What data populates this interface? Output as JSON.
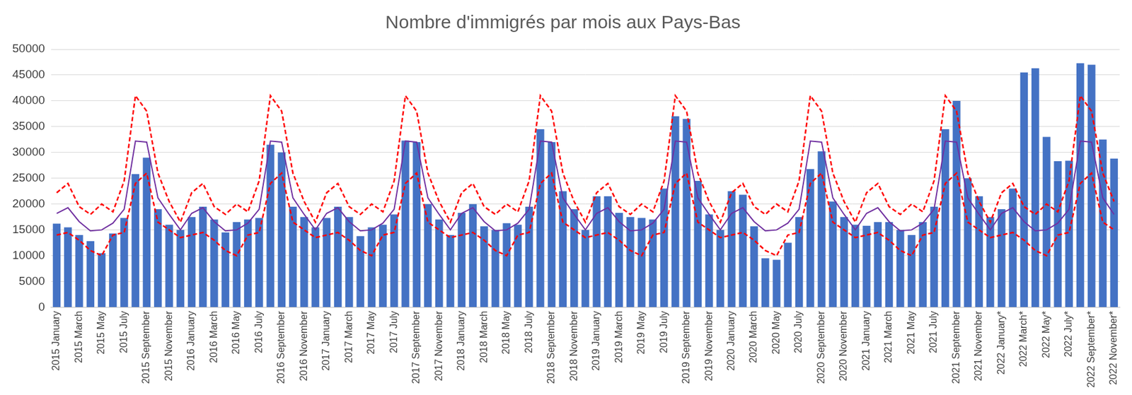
{
  "chart_data": {
    "type": "bar",
    "title": "Nombre d'immigrés par mois aux Pays-Bas",
    "categories": [
      "2015 January",
      null,
      "2015 March",
      null,
      "2015 May",
      null,
      "2015 July",
      null,
      "2015 September",
      null,
      "2015 November",
      null,
      "2016 January",
      null,
      "2016 March",
      null,
      "2016 May",
      null,
      "2016 July",
      null,
      "2016 September",
      null,
      "2016 November",
      null,
      "2017 January",
      null,
      "2017 March",
      null,
      "2017 May",
      null,
      "2017 July",
      null,
      "2017 September",
      null,
      "2017 November",
      null,
      "2018 January",
      null,
      "2018 March",
      null,
      "2018 May",
      null,
      "2018 July",
      null,
      "2018 September",
      null,
      "2018 November",
      null,
      "2019 January",
      null,
      "2019 March",
      null,
      "2019 May",
      null,
      "2019 July",
      null,
      "2019 September",
      null,
      "2019 November",
      null,
      "2020 January",
      null,
      "2020 March",
      null,
      "2020 May",
      null,
      "2020 July",
      null,
      "2020 September",
      null,
      "2020 November",
      null,
      "2021 January",
      null,
      "2021 March",
      null,
      "2021 May",
      null,
      "2021 July",
      null,
      "2021 September",
      null,
      "2021 November",
      null,
      "2022 January*",
      null,
      "2022 March*",
      null,
      "2022 May*",
      null,
      "2022 July*",
      null,
      "2022 September*",
      null,
      "2022 November*"
    ],
    "series": [
      {
        "type": "bar",
        "color": "#4472c4",
        "values": [
          16200,
          15500,
          14000,
          12800,
          10500,
          14300,
          17300,
          25800,
          29000,
          19000,
          16000,
          15000,
          17500,
          19500,
          17000,
          14500,
          16500,
          17000,
          17300,
          31500,
          30000,
          19500,
          17500,
          15500,
          17300,
          19500,
          17500,
          13800,
          15500,
          16000,
          18000,
          32300,
          32000,
          20000,
          17000,
          14000,
          18300,
          20000,
          15700,
          15000,
          16300,
          16000,
          19500,
          34500,
          32000,
          22500,
          19000,
          15000,
          21500,
          21500,
          18300,
          17500,
          17300,
          17000,
          23000,
          37000,
          36500,
          24500,
          18000,
          15000,
          22500,
          21800,
          15700,
          9500,
          9200,
          12500,
          17500,
          26800,
          30200,
          20500,
          17500,
          16000,
          15800,
          16500,
          16500,
          15000,
          14000,
          16500,
          19500,
          34500,
          40000,
          25000,
          21500,
          17500,
          19000,
          23000,
          45500,
          46300,
          33000,
          28300,
          28400,
          47300,
          47000,
          32500,
          28800
        ]
      },
      {
        "type": "line",
        "color": "#7030a0",
        "line_style": "solid",
        "marker": "none",
        "values": [
          18200,
          19300,
          16600,
          14800,
          15000,
          16300,
          19000,
          32200,
          32000,
          21200,
          18000,
          15000,
          18200,
          19300,
          16600,
          14800,
          15000,
          16300,
          19000,
          32200,
          32000,
          21200,
          18000,
          15000,
          18200,
          19300,
          16600,
          14800,
          15000,
          16300,
          19000,
          32200,
          32000,
          21200,
          18000,
          15000,
          18200,
          19300,
          16600,
          14800,
          15000,
          16300,
          19000,
          32200,
          32000,
          21200,
          18000,
          15000,
          18200,
          19300,
          16600,
          14800,
          15000,
          16300,
          19000,
          32200,
          32000,
          21200,
          18000,
          15000,
          18200,
          19300,
          16600,
          14800,
          15000,
          16300,
          19000,
          32200,
          32000,
          21200,
          18000,
          15000,
          18200,
          19300,
          16600,
          14800,
          15000,
          16300,
          19000,
          32200,
          32000,
          21200,
          18000,
          15000,
          18200,
          19300,
          16600,
          14800,
          15000,
          16300,
          19000,
          32200,
          32000,
          21200,
          18000
        ]
      },
      {
        "type": "line",
        "color": "#ff0000",
        "line_style": "dashed",
        "marker": "none",
        "values": [
          22200,
          24000,
          19500,
          18000,
          20000,
          18500,
          24500,
          41000,
          38000,
          26000,
          20500,
          16500,
          22200,
          24000,
          19500,
          18000,
          20000,
          18500,
          24500,
          41000,
          38000,
          26000,
          20500,
          16500,
          22200,
          24000,
          19500,
          18000,
          20000,
          18500,
          24500,
          41000,
          38000,
          26000,
          20500,
          16500,
          22200,
          24000,
          19500,
          18000,
          20000,
          18500,
          24500,
          41000,
          38000,
          26000,
          20500,
          16500,
          22200,
          24000,
          19500,
          18000,
          20000,
          18500,
          24500,
          41000,
          38000,
          26000,
          20500,
          16500,
          22200,
          24000,
          19500,
          18000,
          20000,
          18500,
          24500,
          41000,
          38000,
          26000,
          20500,
          16500,
          22200,
          24000,
          19500,
          18000,
          20000,
          18500,
          24500,
          41000,
          38000,
          26000,
          20500,
          16500,
          22200,
          24000,
          19500,
          18000,
          20000,
          18500,
          24500,
          41000,
          38000,
          26000,
          20500
        ]
      },
      {
        "type": "line",
        "color": "#ff0000",
        "line_style": "dashed",
        "marker": "none",
        "values": [
          14000,
          14500,
          13000,
          11000,
          10000,
          14000,
          14500,
          24000,
          26000,
          16500,
          15000,
          13500,
          14000,
          14500,
          13000,
          11000,
          10000,
          14000,
          14500,
          24000,
          26000,
          16500,
          15000,
          13500,
          14000,
          14500,
          13000,
          11000,
          10000,
          14000,
          14500,
          24000,
          26000,
          16500,
          15000,
          13500,
          14000,
          14500,
          13000,
          11000,
          10000,
          14000,
          14500,
          24000,
          26000,
          16500,
          15000,
          13500,
          14000,
          14500,
          13000,
          11000,
          10000,
          14000,
          14500,
          24000,
          26000,
          16500,
          15000,
          13500,
          14000,
          14500,
          13000,
          11000,
          10000,
          14000,
          14500,
          24000,
          26000,
          16500,
          15000,
          13500,
          14000,
          14500,
          13000,
          11000,
          10000,
          14000,
          14500,
          24000,
          26000,
          16500,
          15000,
          13500,
          14000,
          14500,
          13000,
          11000,
          10000,
          14000,
          14500,
          24000,
          26000,
          16500,
          15000
        ]
      }
    ],
    "ylim": [
      0,
      50000
    ],
    "yticks": [
      0,
      5000,
      10000,
      15000,
      20000,
      25000,
      30000,
      35000,
      40000,
      45000,
      50000
    ],
    "grid": true
  }
}
